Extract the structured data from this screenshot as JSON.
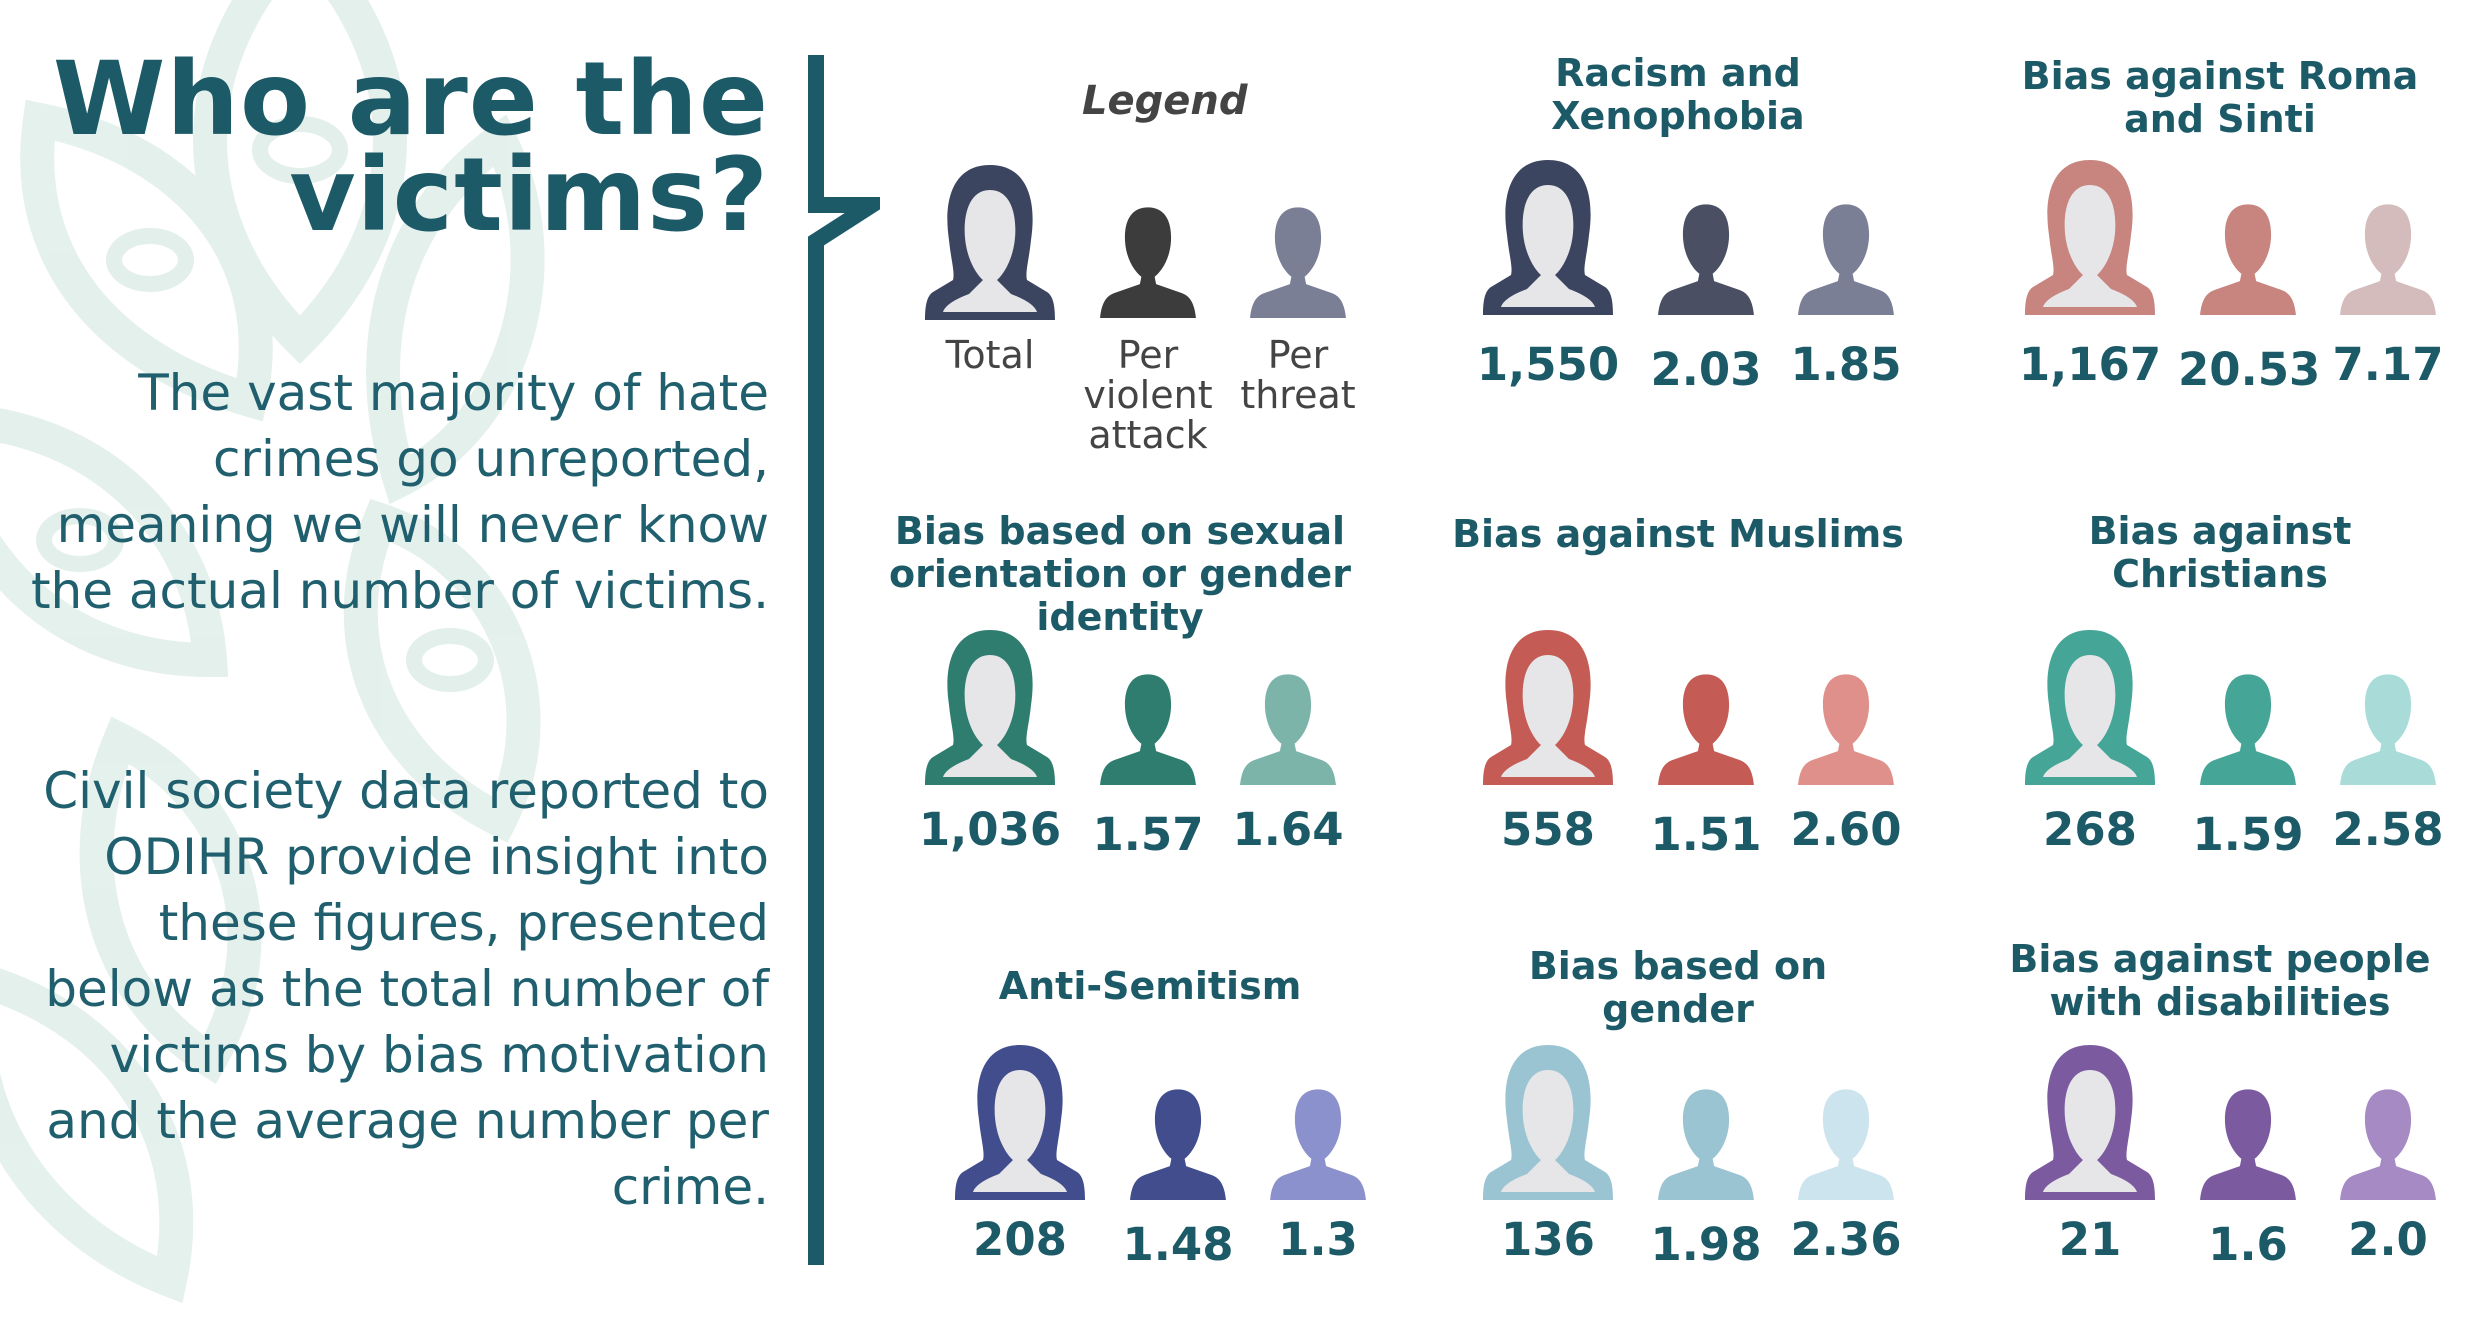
{
  "title": "Who are the victims?",
  "intro": {
    "paragraph1": "The vast majority of hate crimes go unreported, meaning we will never know the actual number of victims.",
    "paragraph2": "Civil society data reported to ODIHR provide insight into these figures, presented below as the total number of victims by bias motivation and the average number per crime."
  },
  "legend": {
    "title": "Legend",
    "labels": [
      "Total",
      "Per violent attack",
      "Per threat"
    ],
    "colors": [
      "#3b4560",
      "#3c3c3c",
      "#7a7f96"
    ],
    "icons": [
      "person-total-icon",
      "person-violent-icon",
      "person-threat-icon"
    ]
  },
  "categories": [
    {
      "name": "Racism and Xenophobia",
      "total": "1,550",
      "per_violent": "2.03",
      "per_threat": "1.85",
      "colors": [
        "#3b4560",
        "#4a4f63",
        "#7a7f96"
      ]
    },
    {
      "name": "Bias against Roma and Sinti",
      "total": "1,167",
      "per_violent": "20.53",
      "per_threat": "7.17",
      "colors": [
        "#c8847e",
        "#c8847e",
        "#d3bcbb"
      ]
    },
    {
      "name": "Bias based on sexual orientation or gender identity",
      "total": "1,036",
      "per_violent": "1.57",
      "per_threat": "1.64",
      "colors": [
        "#2f7d6e",
        "#2f7d6e",
        "#7cb4aa"
      ]
    },
    {
      "name": "Bias against Muslims",
      "total": "558",
      "per_violent": "1.51",
      "per_threat": "2.60",
      "colors": [
        "#c55b55",
        "#c55b55",
        "#e0908a"
      ]
    },
    {
      "name": "Bias against Christians",
      "total": "268",
      "per_violent": "1.59",
      "per_threat": "2.58",
      "colors": [
        "#45a597",
        "#45a597",
        "#a9dcd9"
      ]
    },
    {
      "name": "Anti-Semitism",
      "total": "208",
      "per_violent": "1.48",
      "per_threat": "1.3",
      "colors": [
        "#414d8c",
        "#414d8c",
        "#8b91cc"
      ]
    },
    {
      "name": "Bias based on gender",
      "total": "136",
      "per_violent": "1.98",
      "per_threat": "2.36",
      "colors": [
        "#9bc4d3",
        "#9bc4d3",
        "#cce4ee"
      ]
    },
    {
      "name": "Bias against people with disabilities",
      "total": "21",
      "per_violent": "1.6",
      "per_threat": "2.0",
      "colors": [
        "#7b5aa0",
        "#7b5aa0",
        "#a58ac4"
      ]
    }
  ],
  "theme": {
    "accent": "#1d5a68",
    "pattern": "#dcebe6"
  }
}
